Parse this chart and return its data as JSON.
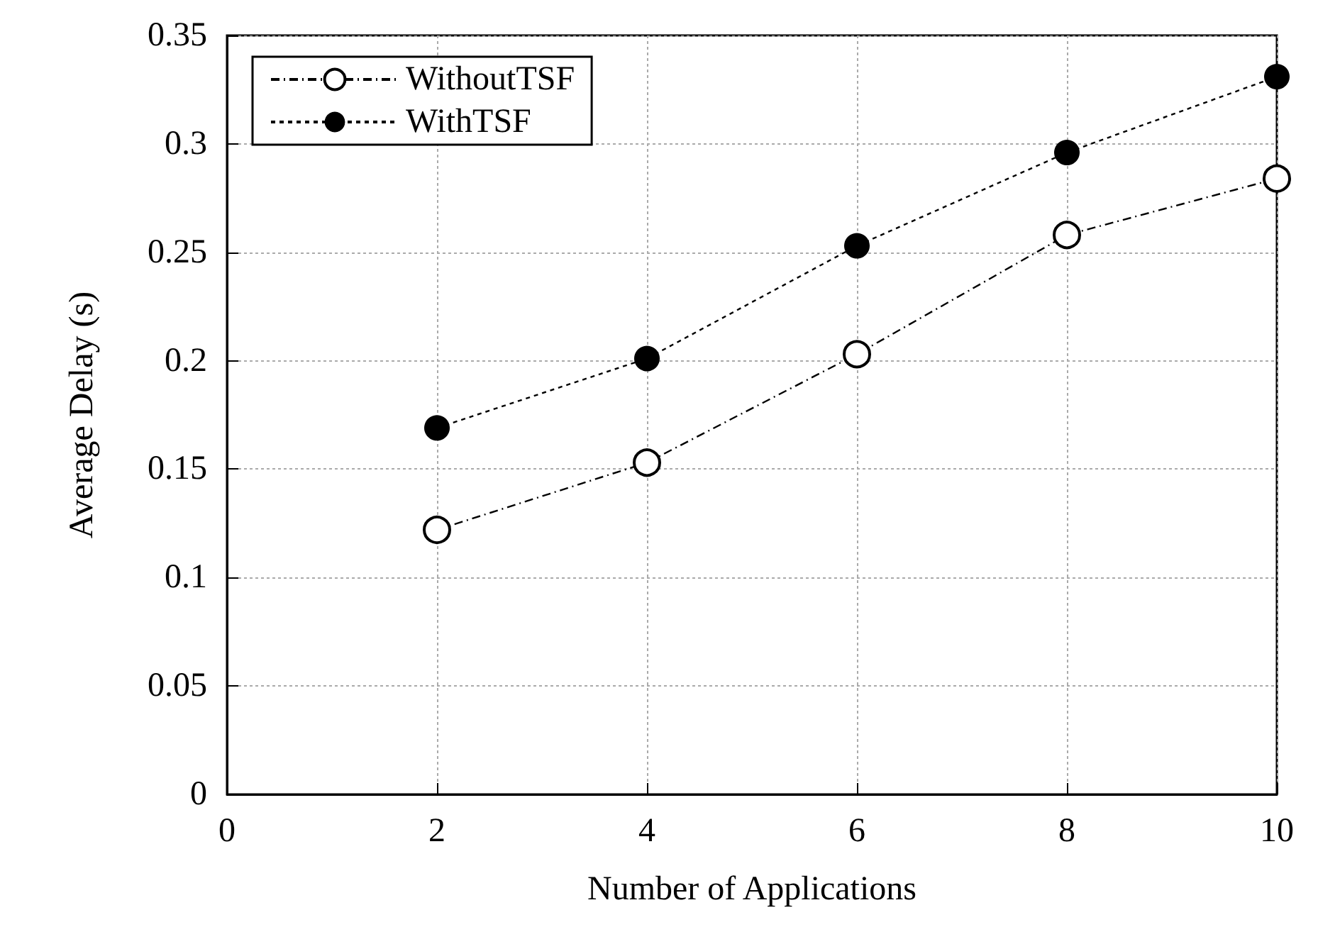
{
  "chart_data": {
    "type": "line",
    "xlabel": "Number of Applications",
    "ylabel": "Average Delay (s)",
    "x": [
      2,
      4,
      6,
      8,
      10
    ],
    "series": [
      {
        "name": "WithoutTSF",
        "color": "#000000",
        "values": [
          0.122,
          0.153,
          0.203,
          0.258,
          0.284
        ],
        "line_style": "dashed"
      },
      {
        "name": "WithTSF",
        "color": "#000000",
        "values": [
          0.169,
          0.201,
          0.253,
          0.296,
          0.331
        ],
        "line_style": "dotted"
      }
    ],
    "xlim": [
      0,
      10
    ],
    "xticks": [
      0,
      2,
      4,
      6,
      8,
      10
    ],
    "ylim": [
      0,
      0.35
    ],
    "yticks": [
      0,
      0.05,
      0.1,
      0.15,
      0.2,
      0.25,
      0.3,
      0.35
    ],
    "grid": true,
    "legend": "top left",
    "marker": "circle"
  }
}
